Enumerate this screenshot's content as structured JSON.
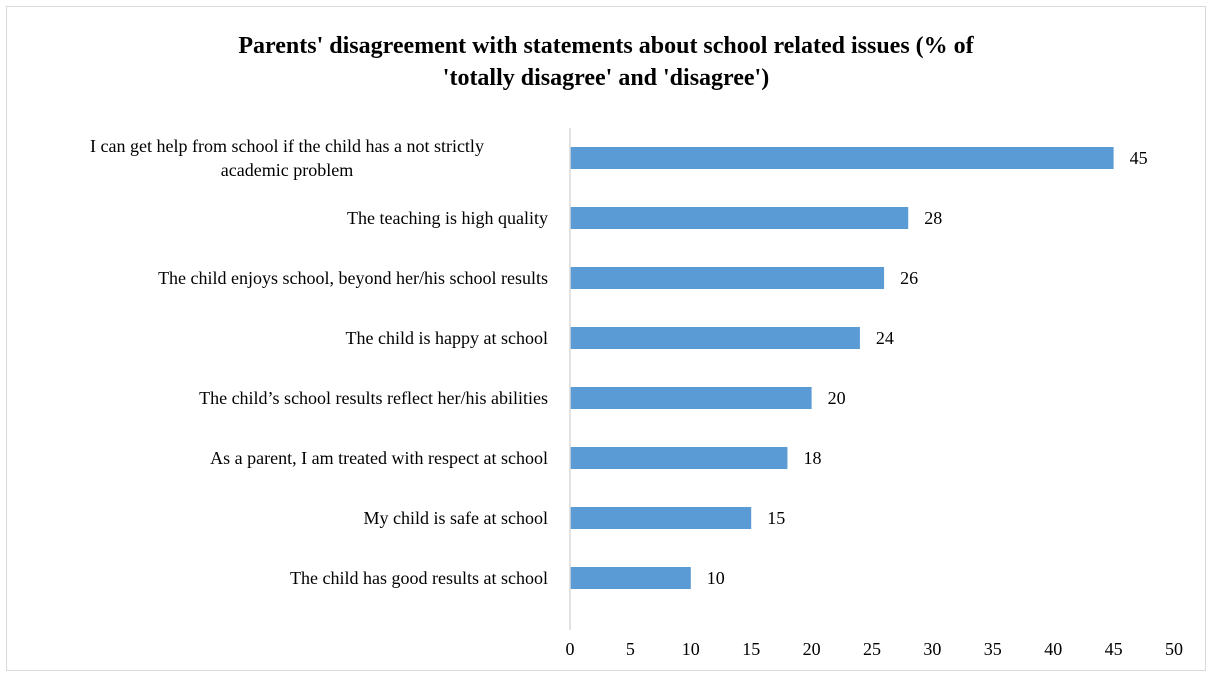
{
  "chart_data": {
    "type": "bar",
    "orientation": "horizontal",
    "title": "Parents' disagreement with statements about school related issues (% of\n'totally disagree' and 'disagree')",
    "categories": [
      "I can get help from school if the child has a not strictly academic problem",
      "The teaching is high quality",
      "The child enjoys school, beyond her/his school results",
      "The child is happy at school",
      "The child’s school results reflect her/his abilities",
      "As a parent, I am treated with respect at school",
      "My child is safe at school",
      "The child has good results at school"
    ],
    "category_lines": [
      [
        "I can get help from school if the child has a not strictly",
        "academic problem"
      ],
      [
        "The teaching is high quality"
      ],
      [
        "The child enjoys school, beyond her/his school results"
      ],
      [
        "The child is happy at school"
      ],
      [
        "The child’s school results reflect her/his abilities"
      ],
      [
        "As a parent, I am treated with respect at school"
      ],
      [
        "My child is safe at school"
      ],
      [
        "The child has good results at school"
      ]
    ],
    "values": [
      45,
      28,
      26,
      24,
      20,
      18,
      15,
      10
    ],
    "data_labels": [
      "45",
      "28",
      "26",
      "24",
      "20",
      "18",
      "15",
      "10"
    ],
    "xlim": [
      0,
      50
    ],
    "x_ticks": [
      "0",
      "5",
      "10",
      "15",
      "20",
      "25",
      "30",
      "35",
      "40",
      "45",
      "50"
    ],
    "xlabel": "",
    "ylabel": "",
    "grid": false,
    "legend": "none",
    "bar_color": "#5b9bd5",
    "axis_color": "#d9d9d9"
  }
}
